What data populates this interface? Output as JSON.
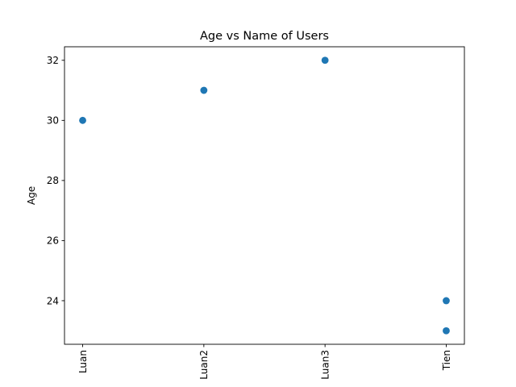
{
  "chart_data": {
    "type": "scatter",
    "title": "Age vs Name of Users",
    "xlabel": "",
    "ylabel": "Age",
    "categories": [
      "Luan",
      "Luan2",
      "Luan3",
      "Tien"
    ],
    "points": [
      {
        "x": "Luan",
        "y": 30
      },
      {
        "x": "Luan2",
        "y": 31
      },
      {
        "x": "Luan3",
        "y": 32
      },
      {
        "x": "Tien",
        "y": 24
      },
      {
        "x": "Tien",
        "y": 23
      }
    ],
    "yticks": [
      24,
      26,
      28,
      30,
      32
    ],
    "ylim": [
      22.55,
      32.45
    ],
    "x_tick_rotation": "vertical",
    "grid": false,
    "marker_color": "#1f77b4"
  }
}
